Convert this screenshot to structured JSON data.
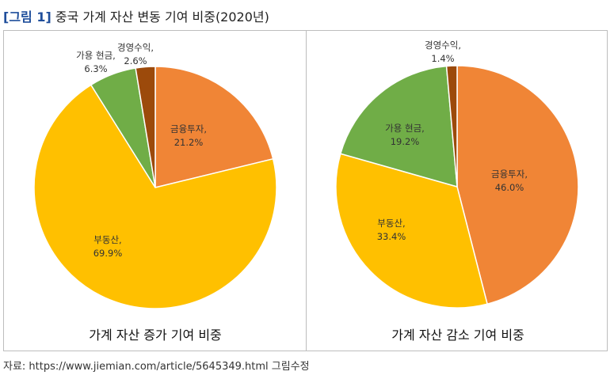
{
  "figure": {
    "tag": "[그림 1]",
    "title": "중국 가계 자산 변동 기여 비중(2020년)"
  },
  "colors": {
    "금융투자": "#F08536",
    "부동산": "#FFC000",
    "가용 현금": "#70AD47",
    "경영수익": "#9C4A0B"
  },
  "chart_data": [
    {
      "type": "pie",
      "title": "가계 자산 증가 기여 비중",
      "slices": [
        {
          "label": "금융투자",
          "value": 21.2,
          "display": "21.2%"
        },
        {
          "label": "부동산",
          "value": 69.9,
          "display": "69.9%"
        },
        {
          "label": "가용 현금",
          "value": 6.3,
          "display": "6.3%"
        },
        {
          "label": "경영수익",
          "value": 2.6,
          "display": "2.6%"
        }
      ]
    },
    {
      "type": "pie",
      "title": "가계 자산 감소 기여 비중",
      "slices": [
        {
          "label": "금융투자",
          "value": 46.0,
          "display": "46.0%"
        },
        {
          "label": "부동산",
          "value": 33.4,
          "display": "33.4%"
        },
        {
          "label": "가용 현금",
          "value": 19.2,
          "display": "19.2%"
        },
        {
          "label": "경영수익",
          "value": 1.4,
          "display": "1.4%"
        }
      ]
    }
  ],
  "source": "자료: https://www.jiemian.com/article/5645349.html 그림수정"
}
